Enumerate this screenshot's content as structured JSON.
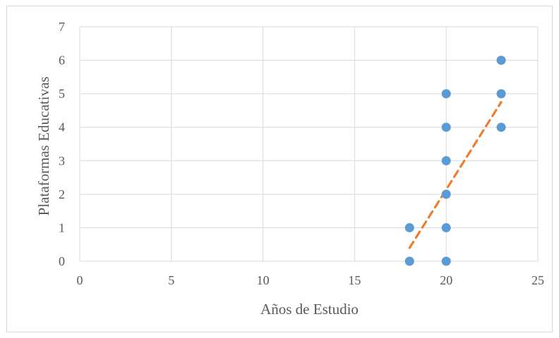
{
  "chart_data": {
    "type": "scatter",
    "title": "",
    "xlabel": "Años de Estudio",
    "ylabel": "Plataformas Educativas",
    "xlim": [
      0,
      25
    ],
    "ylim": [
      0,
      7
    ],
    "x_ticks": [
      "0",
      "5",
      "10",
      "15",
      "20",
      "25"
    ],
    "y_ticks": [
      "0",
      "1",
      "2",
      "3",
      "4",
      "5",
      "6",
      "7"
    ],
    "grid": true,
    "legend": "none",
    "points": [
      {
        "x": 18,
        "y": 0
      },
      {
        "x": 18,
        "y": 1
      },
      {
        "x": 20,
        "y": 0
      },
      {
        "x": 20,
        "y": 1
      },
      {
        "x": 20,
        "y": 2
      },
      {
        "x": 20,
        "y": 3
      },
      {
        "x": 20,
        "y": 4
      },
      {
        "x": 20,
        "y": 5
      },
      {
        "x": 23,
        "y": 4
      },
      {
        "x": 23,
        "y": 5
      },
      {
        "x": 23,
        "y": 6
      }
    ],
    "trendline": {
      "type": "linear",
      "style": "dashed",
      "from": {
        "x": 18,
        "y": 0.4
      },
      "to": {
        "x": 23,
        "y": 4.75
      }
    },
    "colors": {
      "points": "#5b9bd5",
      "trendline": "#ed7d31",
      "grid": "#d9d9d9",
      "text": "#595959"
    }
  }
}
